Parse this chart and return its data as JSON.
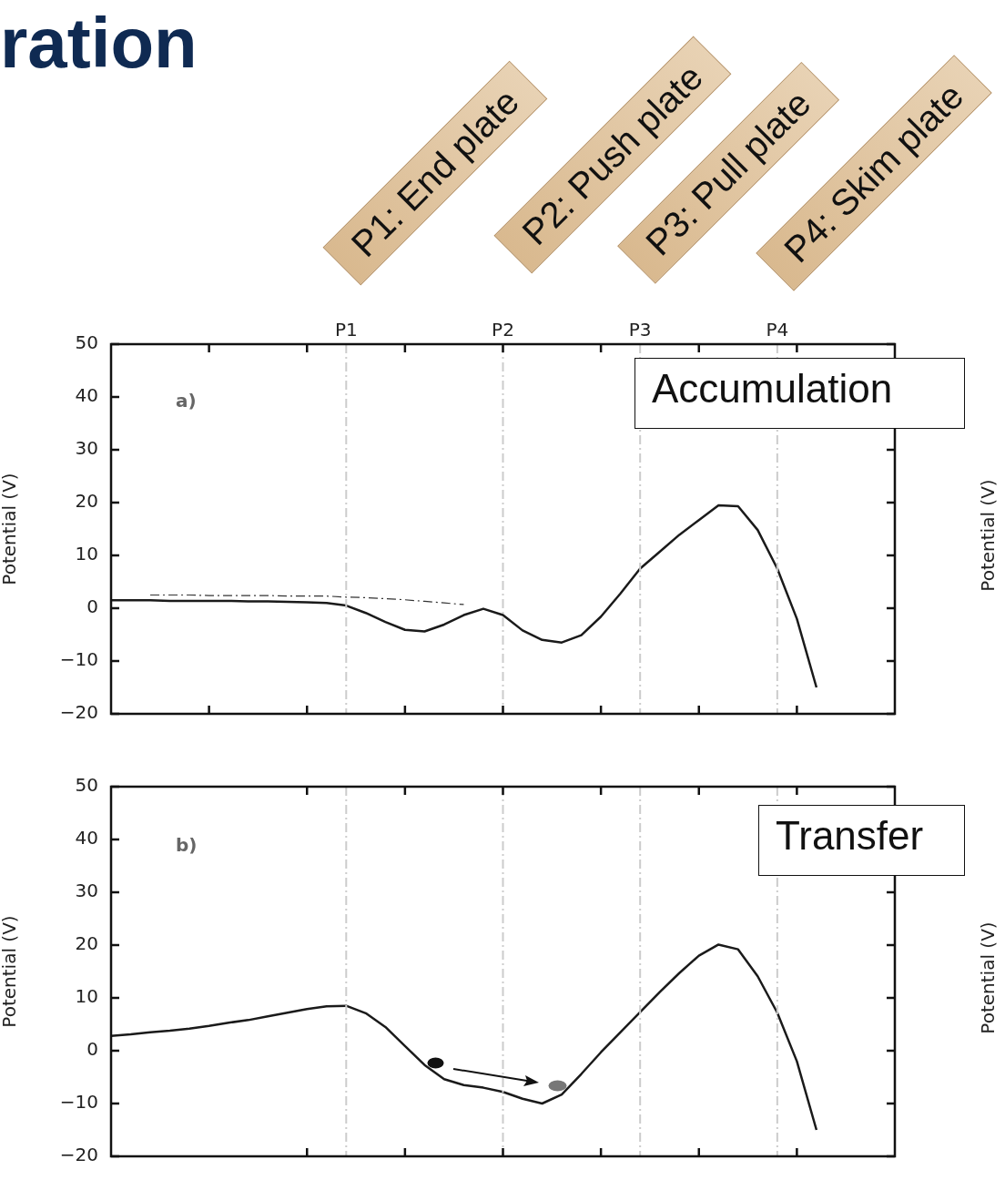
{
  "chart_data": [
    {
      "type": "line",
      "title": "ration",
      "ylabel": "Potential (V)",
      "y2label": "Potential (V)",
      "annotations": [
        "P1: End plate",
        "P2: Push plate",
        "P3: Pull plate",
        "P4: Skim plate",
        "a)",
        "Accumulation"
      ],
      "categories": [
        null,
        null,
        null,
        null,
        null,
        null,
        null,
        null,
        null,
        null,
        null,
        null,
        "P1",
        null,
        null,
        null,
        null,
        null,
        null,
        null,
        "P2",
        null,
        null,
        null,
        null,
        null,
        null,
        "P3",
        null,
        null,
        null,
        null,
        null,
        null,
        "P4",
        null,
        null,
        null,
        null,
        null,
        null
      ],
      "ylim": [
        -20,
        50
      ],
      "yticks": [
        -20,
        -10,
        0,
        10,
        20,
        30,
        40,
        50
      ],
      "grid": false,
      "legend": false,
      "marker": "none",
      "ref_lines": [
        {
          "axis": "x",
          "value": "P1",
          "color": "#cccccc",
          "line_style": "dashed"
        },
        {
          "axis": "x",
          "value": "P2",
          "color": "#cccccc",
          "line_style": "dashed"
        },
        {
          "axis": "x",
          "value": "P3",
          "color": "#cccccc",
          "line_style": "dashed"
        },
        {
          "axis": "x",
          "value": "P4",
          "color": "#cccccc",
          "line_style": "dashed"
        }
      ],
      "series": [
        {
          "color": "#1a1a1a",
          "line_style": "solid",
          "values": [
            1.5,
            1.5,
            1.5,
            1.4,
            1.4,
            1.4,
            1.4,
            1.3,
            1.3,
            1.2,
            1.1,
            1.0,
            0.5,
            -0.9,
            -2.6,
            -4.1,
            -4.4,
            -3.1,
            -1.3,
            -0.1,
            -1.3,
            -4.2,
            -6.0,
            -6.5,
            -5.1,
            -1.6,
            2.8,
            7.5,
            10.7,
            13.9,
            16.7,
            19.5,
            19.3,
            14.8,
            7.5,
            -2,
            -15,
            null,
            null,
            null,
            null
          ]
        },
        {
          "color": "#333333",
          "line_style": "dashed",
          "values": [
            null,
            null,
            2.5,
            2.5,
            2.5,
            2.4,
            2.4,
            2.4,
            2.4,
            2.3,
            2.3,
            2.3,
            2.1,
            2.0,
            1.8,
            1.6,
            1.3,
            1.0,
            0.7,
            null,
            null,
            null,
            null,
            null,
            null,
            null,
            null,
            null,
            null,
            null,
            null,
            null,
            null,
            null,
            null,
            null,
            null,
            null,
            null,
            null,
            null
          ]
        }
      ]
    },
    {
      "type": "line",
      "ylabel": "Potential (V)",
      "y2label": "Potential (V)",
      "annotations": [
        "b)",
        "Transfer"
      ],
      "categories": [
        null,
        null,
        null,
        null,
        null,
        null,
        null,
        null,
        null,
        null,
        null,
        null,
        "P1",
        null,
        null,
        null,
        null,
        null,
        null,
        null,
        "P2",
        null,
        null,
        null,
        null,
        null,
        null,
        "P3",
        null,
        null,
        null,
        null,
        null,
        null,
        "P4",
        null,
        null,
        null,
        null,
        null,
        null
      ],
      "ylim": [
        -20,
        50
      ],
      "yticks": [
        -20,
        -10,
        0,
        10,
        20,
        30,
        40,
        50
      ],
      "tick_labels": "y",
      "grid": false,
      "legend": false,
      "marker": "none",
      "ref_lines": [
        {
          "axis": "x",
          "value": "P1",
          "color": "#cccccc",
          "line_style": "dashed"
        },
        {
          "axis": "x",
          "value": "P2",
          "color": "#cccccc",
          "line_style": "dashed"
        },
        {
          "axis": "x",
          "value": "P3",
          "color": "#cccccc",
          "line_style": "dashed"
        },
        {
          "axis": "x",
          "value": "P4",
          "color": "#cccccc",
          "line_style": "dashed"
        }
      ],
      "series": [
        {
          "color": "#1a1a1a",
          "line_style": "solid",
          "values": [
            2.8,
            3.1,
            3.5,
            3.8,
            4.2,
            4.7,
            5.3,
            5.8,
            6.5,
            7.2,
            7.9,
            8.4,
            8.5,
            7.1,
            4.5,
            0.9,
            -2.7,
            -5.4,
            -6.5,
            -7.0,
            -7.8,
            -9.1,
            -10,
            -8.3,
            -4.4,
            -0.3,
            3.5,
            7.3,
            11.1,
            14.7,
            18.0,
            20.1,
            19.2,
            14.1,
            7.2,
            -2,
            -15,
            null,
            null,
            null,
            null
          ]
        }
      ]
    }
  ]
}
